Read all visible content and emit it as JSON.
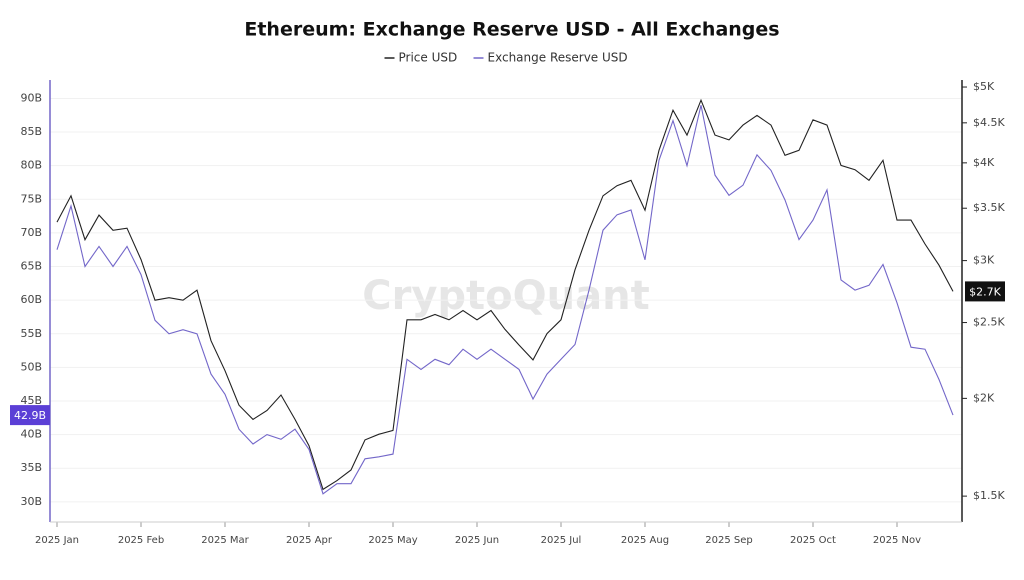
{
  "chart_data": {
    "type": "line",
    "title": "Ethereum: Exchange Reserve USD - All Exchanges",
    "watermark": "CryptoQuant",
    "categories": [
      "2025 Jan",
      null,
      null,
      null,
      null,
      null,
      "2025 Feb",
      null,
      null,
      null,
      null,
      null,
      "2025 Mar",
      null,
      null,
      null,
      null,
      null,
      "2025 Apr",
      null,
      null,
      null,
      null,
      null,
      "2025 May",
      null,
      null,
      null,
      null,
      null,
      "2025 Jun",
      null,
      null,
      null,
      null,
      null,
      "2025 Jul",
      null,
      null,
      null,
      null,
      null,
      "2025 Aug",
      null,
      null,
      null,
      null,
      null,
      "2025 Sep",
      null,
      null,
      null,
      null,
      null,
      "2025 Oct",
      null,
      null,
      null,
      null,
      null,
      "2025 Nov",
      null,
      null,
      null,
      null
    ],
    "series": [
      {
        "name": "Price USD",
        "color": "#222222",
        "axis": "y2",
        "end_label": "$2.7K",
        "values": [
          3360,
          3630,
          3190,
          3430,
          3280,
          3300,
          3010,
          2670,
          2690,
          2670,
          2750,
          2370,
          2170,
          1960,
          1880,
          1930,
          2020,
          1880,
          1740,
          1530,
          1570,
          1620,
          1770,
          1800,
          1820,
          2520,
          2520,
          2560,
          2520,
          2590,
          2520,
          2590,
          2450,
          2340,
          2240,
          2420,
          2520,
          2920,
          3280,
          3630,
          3740,
          3800,
          3480,
          4150,
          4670,
          4340,
          4810,
          4340,
          4280,
          4470,
          4600,
          4470,
          4090,
          4150,
          4540,
          4470,
          3970,
          3920,
          3800,
          4030,
          3380,
          3380,
          3150,
          2960,
          2740
        ]
      },
      {
        "name": "Exchange Reserve USD",
        "color": "#7367c9",
        "end_label": "42.9B",
        "values": [
          67.5,
          74,
          65,
          68,
          65,
          68,
          63.8,
          57,
          55,
          55.6,
          55,
          49,
          46,
          40.8,
          38.6,
          40,
          39.3,
          40.8,
          37.8,
          31.2,
          32.7,
          32.7,
          36.4,
          36.7,
          37.1,
          51.2,
          49.7,
          51.2,
          50.4,
          52.7,
          51.2,
          52.7,
          51.2,
          49.7,
          45.3,
          49,
          51.2,
          53.4,
          61.5,
          70.4,
          72.7,
          73.4,
          66,
          80.8,
          86.7,
          80,
          89,
          78.6,
          75.6,
          77.1,
          81.6,
          79.3,
          74.9,
          69,
          71.9,
          76.4,
          63,
          61.5,
          62.2,
          65.3,
          59.6,
          53,
          52.7,
          48.2,
          42.9
        ]
      }
    ],
    "ylim": [
      27,
      92
    ],
    "yticks": [
      {
        "value": 30,
        "label": "30B"
      },
      {
        "value": 35,
        "label": "35B"
      },
      {
        "value": 40,
        "label": "40B"
      },
      {
        "value": 45,
        "label": "45B"
      },
      {
        "value": 50,
        "label": "50B"
      },
      {
        "value": 55,
        "label": "55B"
      },
      {
        "value": 60,
        "label": "60B"
      },
      {
        "value": 65,
        "label": "65B"
      },
      {
        "value": 70,
        "label": "70B"
      },
      {
        "value": 75,
        "label": "75B"
      },
      {
        "value": 80,
        "label": "80B"
      },
      {
        "value": 85,
        "label": "85B"
      },
      {
        "value": 90,
        "label": "90B"
      }
    ],
    "y2lim": [
      1390,
      5030
    ],
    "y2scale": "log",
    "y2ticks": [
      {
        "value": 1500,
        "label": "$1.5K"
      },
      {
        "value": 2000,
        "label": "$2K"
      },
      {
        "value": 2500,
        "label": "$2.5K"
      },
      {
        "value": 3000,
        "label": "$3K"
      },
      {
        "value": 3500,
        "label": "$3.5K"
      },
      {
        "value": 4000,
        "label": "$4K"
      },
      {
        "value": 4500,
        "label": "$4.5K"
      },
      {
        "value": 5000,
        "label": "$5K"
      }
    ],
    "grid": true
  }
}
